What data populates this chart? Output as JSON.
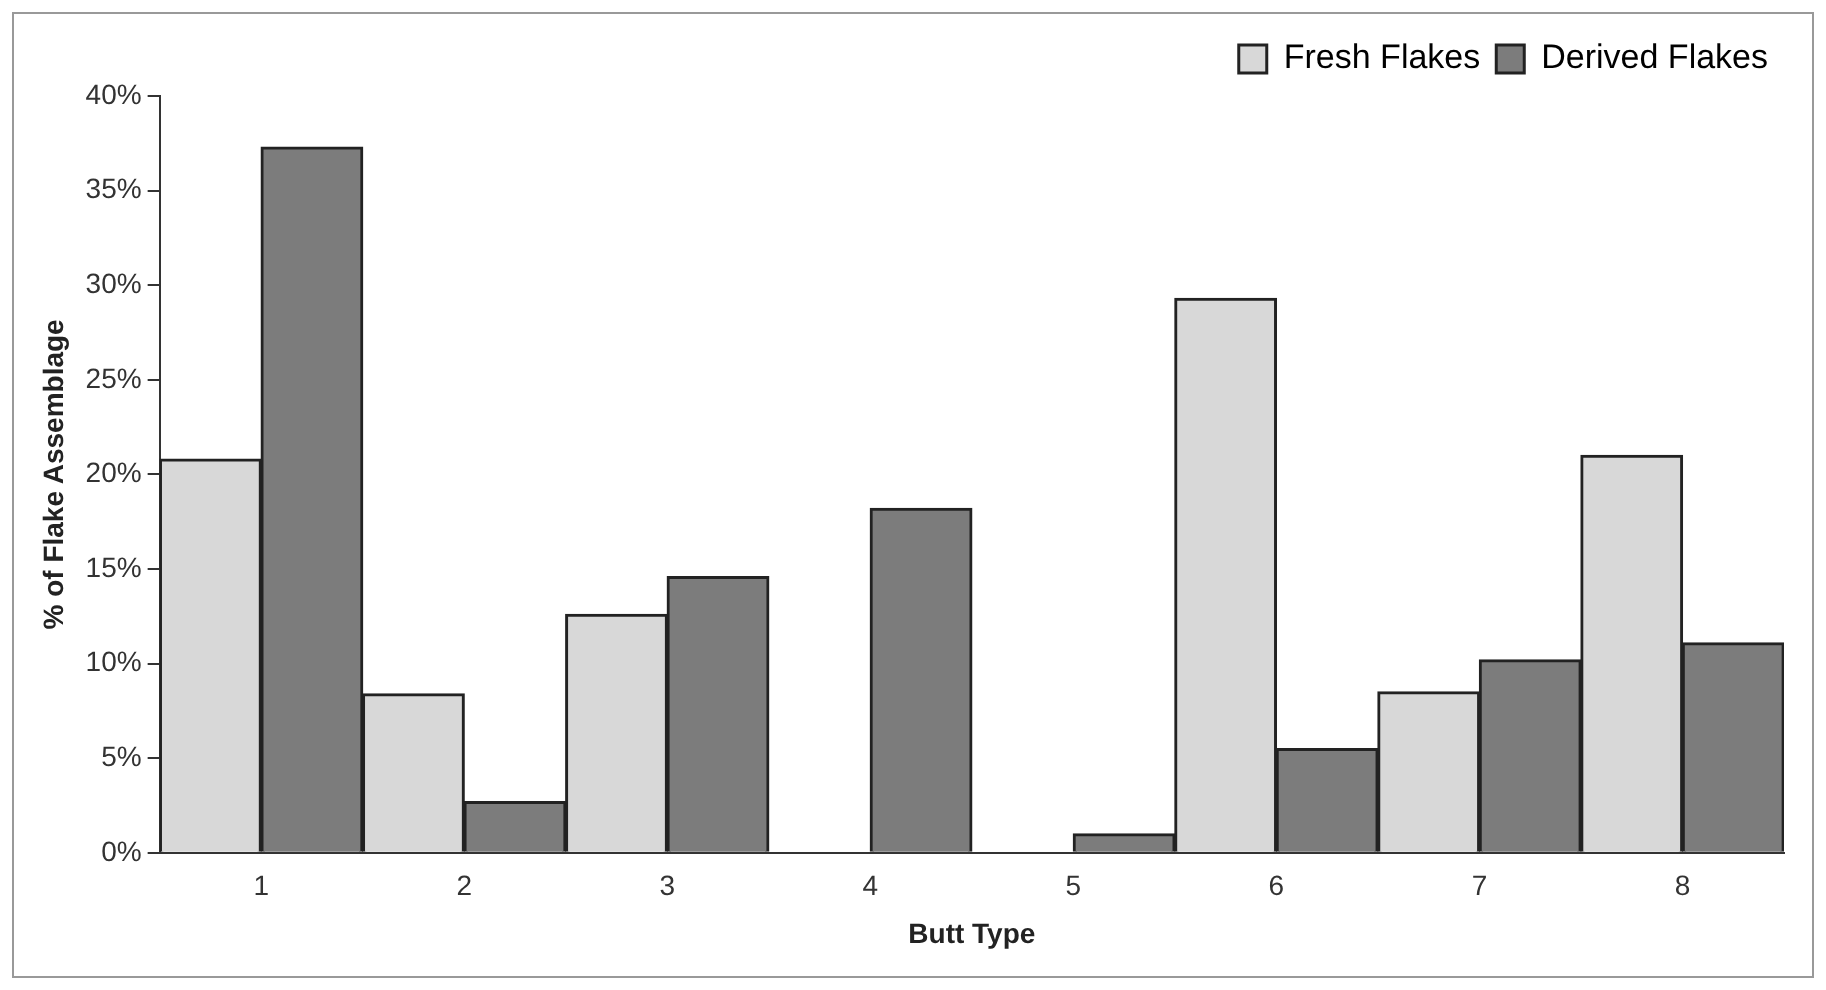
{
  "chart_data": {
    "type": "bar",
    "xlabel": "Butt Type",
    "ylabel": "% of Flake Assemblage",
    "categories": [
      "1",
      "2",
      "3",
      "4",
      "5",
      "6",
      "7",
      "8"
    ],
    "series": [
      {
        "name": "Fresh Flakes",
        "color": "#d8d8d8",
        "values": [
          20.8,
          8.4,
          12.6,
          0,
          0,
          29.3,
          8.5,
          21.0
        ]
      },
      {
        "name": "Derived Flakes",
        "color": "#7c7c7c",
        "values": [
          37.3,
          2.7,
          14.6,
          18.2,
          1.0,
          5.5,
          10.2,
          11.1
        ]
      }
    ],
    "ylim": [
      0,
      40
    ],
    "yticks": [
      {
        "value": 0,
        "label": "0%"
      },
      {
        "value": 5,
        "label": "5%"
      },
      {
        "value": 10,
        "label": "10%"
      },
      {
        "value": 15,
        "label": "15%"
      },
      {
        "value": 20,
        "label": "20%"
      },
      {
        "value": 25,
        "label": "25%"
      },
      {
        "value": 30,
        "label": "30%"
      },
      {
        "value": 35,
        "label": "35%"
      },
      {
        "value": 40,
        "label": "40%"
      }
    ],
    "grid": false,
    "legend": "top right"
  }
}
